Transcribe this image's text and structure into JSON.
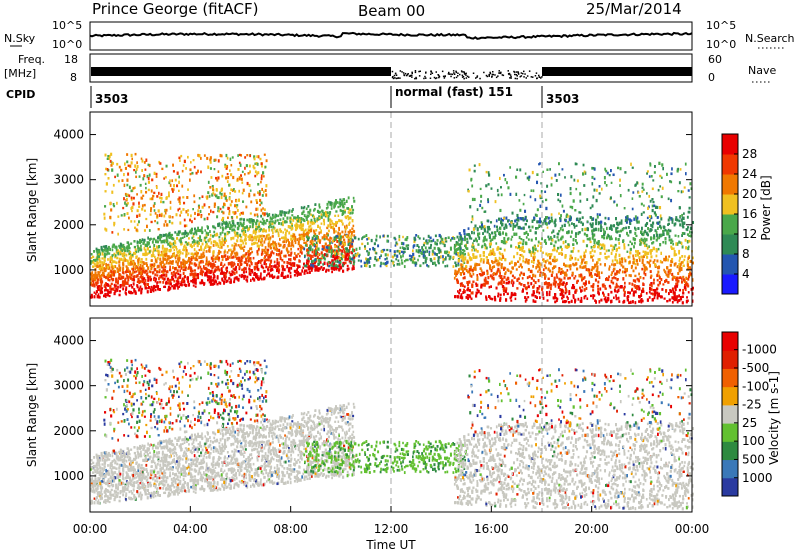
{
  "header": {
    "station": "Prince George (fitACF)",
    "beam": "Beam 00",
    "date": "25/Mar/2014"
  },
  "top_panels": {
    "nsky_label": "N.Sky",
    "nsky_ticks": [
      "10^5",
      "10^0"
    ],
    "nsearch_label": "N.Search",
    "nsearch_ticks": [
      "10^5",
      "10^0"
    ],
    "freq_label": "Freq.",
    "freq_unit": "[MHz]",
    "freq_ticks": [
      "18",
      "8"
    ],
    "nave_label": "Nave",
    "nave_ticks": [
      "60",
      "0"
    ],
    "cpid_label": "CPID",
    "cpid_segments": [
      "3503",
      "normal (fast) 151",
      "3503"
    ]
  },
  "colors": {
    "power": [
      "#1a1aff",
      "#2456b0",
      "#2f8a55",
      "#4aa84a",
      "#f0c020",
      "#f07800",
      "#f03800",
      "#e80000"
    ],
    "velocity": [
      "#2a3aa0",
      "#3a78b8",
      "#2e8a40",
      "#62c030",
      "#c8c8c0",
      "#f0a000",
      "#f06000",
      "#e02000",
      "#e80000"
    ]
  },
  "chart_data": [
    {
      "type": "heatmap",
      "title": "",
      "xlabel": "",
      "ylabel": "Slant Range [km]",
      "x_ticks": [
        "00:00",
        "04:00",
        "08:00",
        "12:00",
        "16:00",
        "20:00",
        "00:00"
      ],
      "y_ticks": [
        "1000",
        "2000",
        "3000",
        "4000"
      ],
      "xlim_hours": [
        0,
        24
      ],
      "ylim_km": [
        200,
        4500
      ],
      "colorbar": {
        "label": "Power [dB]",
        "tick_labels": [
          "4",
          "8",
          "12",
          "16",
          "20",
          "24",
          "28"
        ],
        "range": [
          0,
          32
        ]
      }
    },
    {
      "type": "heatmap",
      "title": "",
      "xlabel": "Time UT",
      "ylabel": "Slant Range [km]",
      "x_ticks": [
        "00:00",
        "04:00",
        "08:00",
        "12:00",
        "16:00",
        "20:00",
        "00:00"
      ],
      "y_ticks": [
        "1000",
        "2000",
        "3000",
        "4000"
      ],
      "xlim_hours": [
        0,
        24
      ],
      "ylim_km": [
        200,
        4500
      ],
      "colorbar": {
        "label": "Velocity [m s-1]",
        "tick_labels": [
          "1000",
          "500",
          "100",
          "25",
          "-25",
          "-100",
          "-500",
          "-1000"
        ]
      }
    }
  ]
}
